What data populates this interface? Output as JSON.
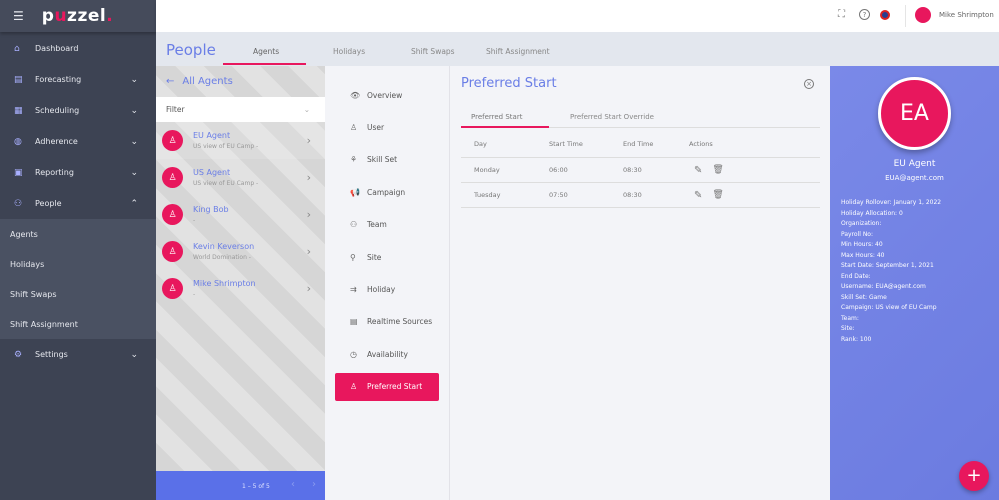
{
  "sidebar": {
    "brand": "puzzel",
    "items": [
      {
        "label": "Dashboard",
        "icon": "home-icon"
      },
      {
        "label": "Forecasting",
        "icon": "forecast-icon"
      },
      {
        "label": "Scheduling",
        "icon": "calendar-icon"
      },
      {
        "label": "Adherence",
        "icon": "adherence-icon"
      },
      {
        "label": "Reporting",
        "icon": "report-icon"
      },
      {
        "label": "People",
        "icon": "people-icon"
      }
    ],
    "subitems": [
      "Agents",
      "Holidays",
      "Shift Swaps",
      "Shift Assignment"
    ],
    "settings": "Settings"
  },
  "header": {
    "user": "Mike Shrimpton"
  },
  "page": {
    "title": "People",
    "tabs": [
      "Agents",
      "Holidays",
      "Shift Swaps",
      "Shift Assignment"
    ]
  },
  "agents": {
    "back_label": "All Agents",
    "filter": "Filter",
    "items": [
      {
        "name": "EU Agent",
        "sub": "US view of EU Camp -"
      },
      {
        "name": "US Agent",
        "sub": "US view of EU Camp -"
      },
      {
        "name": "King Bob",
        "sub": "-"
      },
      {
        "name": "Kevin Keverson",
        "sub": "World Domination -"
      },
      {
        "name": "Mike Shrimpton",
        "sub": "-"
      }
    ],
    "pagination": "1 – 5 of 5"
  },
  "menu": [
    "Overview",
    "User",
    "Skill Set",
    "Campaign",
    "Team",
    "Site",
    "Holiday",
    "Realtime Sources",
    "Availability",
    "Preferred Start"
  ],
  "panel": {
    "title": "Preferred Start",
    "tabs": [
      "Preferred Start",
      "Preferred Start Override"
    ],
    "columns": [
      "Day",
      "Start Time",
      "End Time",
      "Actions"
    ],
    "rows": [
      {
        "day": "Monday",
        "start": "06:00",
        "end": "08:30"
      },
      {
        "day": "Tuesday",
        "start": "07:50",
        "end": "08:30"
      }
    ]
  },
  "profile": {
    "initials": "EA",
    "name": "EU Agent",
    "email": "EUA@agent.com",
    "details": [
      "Holiday Rollover:  January 1, 2022",
      "Holiday Allocation: 0",
      "Organization:",
      "Payroll No:",
      "Min Hours: 40",
      "Max Hours: 40",
      "Start Date: September 1, 2021",
      "End Date:",
      "Username: EUA@agent.com",
      "Skill Set: Game",
      "Campaign: US view of EU Camp",
      "Team:",
      "Site:",
      "Rank: 100"
    ]
  },
  "colors": {
    "accent": "#e8175d",
    "primary": "#6a7ee6",
    "sidebar": "#3d4353"
  }
}
